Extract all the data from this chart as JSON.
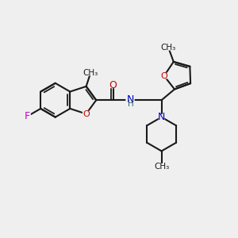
{
  "bg_color": "#efefef",
  "bond_color": "#1a1a1a",
  "bond_width": 1.5,
  "fig_size": [
    3.0,
    3.0
  ],
  "dpi": 100,
  "xlim": [
    0,
    10
  ],
  "ylim": [
    0,
    10
  ]
}
